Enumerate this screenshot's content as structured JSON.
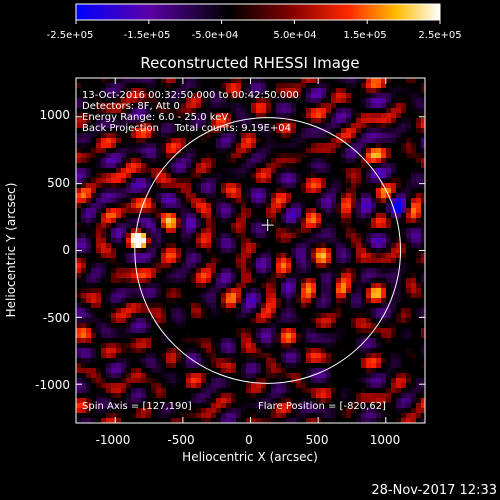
{
  "colorbar": {
    "ticks": [
      "-2.5e+05",
      "-1.5e+05",
      "-5.0e+04",
      "5.0e+04",
      "1.5e+05",
      "2.5e+05"
    ],
    "range": [
      -250000,
      250000
    ],
    "stops": [
      "#0000ff",
      "#5a00a8",
      "#000000",
      "#8a0000",
      "#ff2a00",
      "#ffbb00",
      "#ffffff"
    ]
  },
  "plot": {
    "title": "Reconstructed RHESSI Image",
    "xlabel": "Heliocentric X (arcsec)",
    "ylabel": "Heliocentric Y (arcsec)",
    "xlim": [
      -1290,
      1290
    ],
    "ylim": [
      -1290,
      1290
    ],
    "xticks": [
      "-1000",
      "-500",
      "0",
      "500",
      "1000"
    ],
    "yticks": [
      "-1000",
      "-500",
      "0",
      "500",
      "1000"
    ],
    "xtick_values": [
      -1000,
      -500,
      0,
      500,
      1000
    ],
    "ytick_values": [
      -1000,
      -500,
      0,
      500,
      1000
    ]
  },
  "annotations": {
    "line1": "13-Oct-2016 00:32:50.000 to 00:42:50.000",
    "line2": "Detectors: 8F, Att 0",
    "line3": "Energy Range: 6.0 - 25.0 keV",
    "line4": "Back Projection     Total counts: 9.19E+04",
    "spin_axis": "Spin Axis = [127,190]",
    "flare_position": "Flare Position = [-820,62]"
  },
  "footer": {
    "timestamp": "28-Nov-2017 12:33"
  },
  "map": {
    "solar_limb": {
      "center": [
        127,
        0
      ],
      "radius": 982
    },
    "sun_center_marker": [
      127,
      190
    ],
    "sources": [
      {
        "name": "primary",
        "pos": [
          -820,
          62
        ],
        "value": 250000
      },
      {
        "name": "secondary",
        "pos": [
          670,
          -300
        ],
        "value": 160000
      },
      {
        "name": "negative",
        "pos": [
          1090,
          330
        ],
        "value": -230000
      }
    ]
  }
}
